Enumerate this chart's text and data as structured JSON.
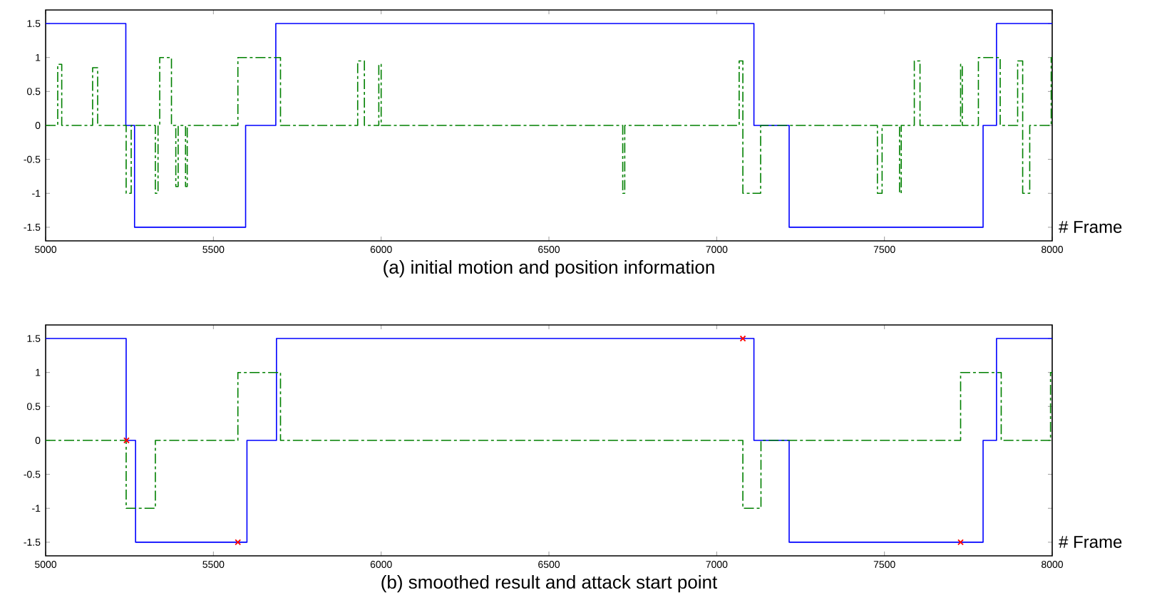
{
  "chart_data": [
    {
      "type": "step",
      "title": "(a) initial motion and position information",
      "xlabel": "# Frame",
      "xlim": [
        5000,
        8000
      ],
      "ylim": [
        -1.7,
        1.7
      ],
      "xticks": [
        5000,
        5500,
        6000,
        6500,
        7000,
        7500,
        8000
      ],
      "yticks": [
        -1.5,
        -1,
        -0.5,
        0,
        0.5,
        1,
        1.5
      ],
      "series": [
        {
          "color": "#0000ff",
          "line_style": "solid",
          "x": [
            5000,
            5239,
            5265,
            5596,
            5686,
            7111,
            7216,
            7794,
            7834,
            8000
          ],
          "values": [
            1.5,
            0,
            -1.5,
            0,
            1.5,
            0,
            -1.5,
            0,
            1.5,
            1.5
          ]
        },
        {
          "color": "#008000",
          "line_style": "dashed",
          "x": [
            5000,
            5036,
            5048,
            5140,
            5155,
            5240,
            5255,
            5327,
            5335,
            5340,
            5375,
            5388,
            5395,
            5417,
            5422,
            5573,
            5700,
            5930,
            5950,
            5993,
            6000,
            6720,
            6726,
            7067,
            7078,
            7131,
            7479,
            7493,
            7545,
            7550,
            7589,
            7606,
            7727,
            7732,
            7780,
            7845,
            7897,
            7912,
            7933,
            7997,
            8000
          ],
          "values": [
            0,
            0.9,
            0,
            0.85,
            0,
            -1,
            0,
            -1,
            0,
            1,
            0,
            -0.9,
            0,
            -0.9,
            0,
            1,
            0,
            0.95,
            0,
            0.9,
            0,
            -1,
            0,
            0.95,
            -1,
            0,
            -1,
            0,
            -1,
            0,
            0.95,
            0,
            0.9,
            0,
            1,
            0,
            0.95,
            -1,
            0,
            1,
            1
          ]
        }
      ]
    },
    {
      "type": "step",
      "title": "(b) smoothed result and attack start point",
      "xlabel": "# Frame",
      "xlim": [
        5000,
        8000
      ],
      "ylim": [
        -1.7,
        1.7
      ],
      "xticks": [
        5000,
        5500,
        6000,
        6500,
        7000,
        7500,
        8000
      ],
      "yticks": [
        -1.5,
        -1,
        -0.5,
        0,
        0.5,
        1,
        1.5
      ],
      "series": [
        {
          "color": "#0000ff",
          "line_style": "solid",
          "x": [
            5000,
            5240,
            5268,
            5600,
            5688,
            7111,
            7216,
            7794,
            7834,
            8000
          ],
          "values": [
            1.5,
            0,
            -1.5,
            0,
            1.5,
            0,
            -1.5,
            0,
            1.5,
            1.5
          ]
        },
        {
          "color": "#008000",
          "line_style": "dashed",
          "x": [
            5000,
            5240,
            5327,
            5573,
            5700,
            7078,
            7132,
            7727,
            7848,
            7995,
            8000
          ],
          "values": [
            0,
            -1,
            0,
            1,
            0,
            -1,
            0,
            1,
            0,
            1,
            1
          ]
        },
        {
          "type": "scatter",
          "color": "#ff0000",
          "marker": "cross",
          "x": [
            5241,
            5573,
            7078,
            7727
          ],
          "values": [
            0,
            -1.5,
            1.5,
            -1.5
          ]
        }
      ]
    }
  ]
}
